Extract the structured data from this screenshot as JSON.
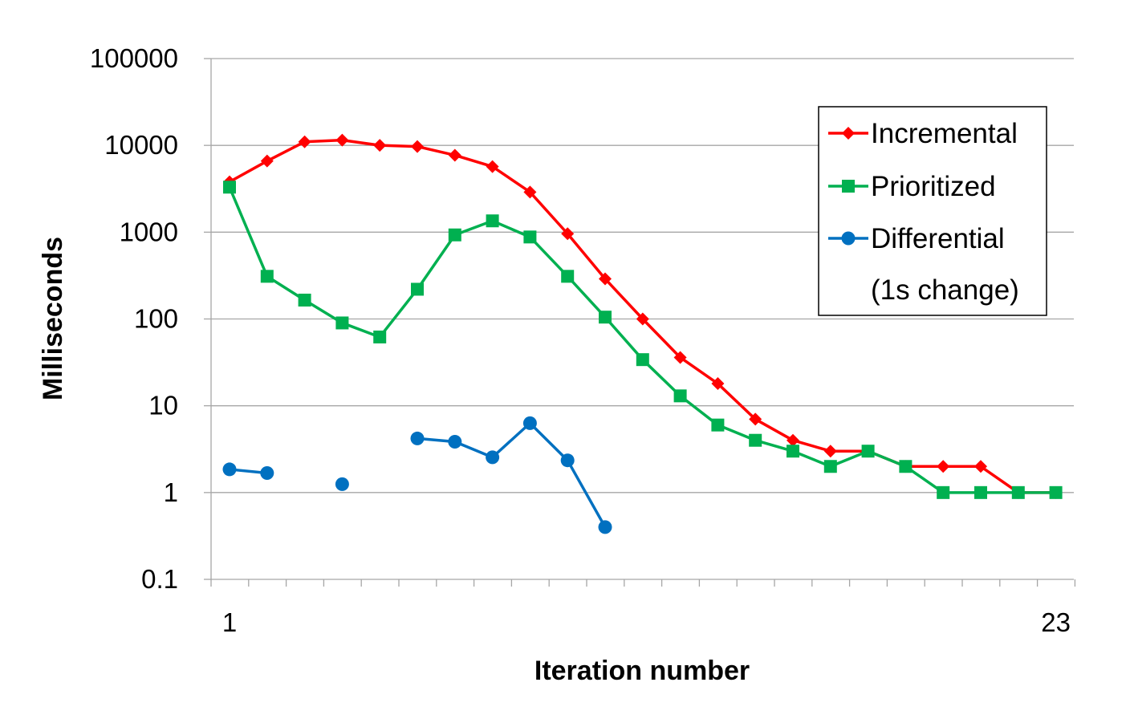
{
  "chart_data": {
    "type": "line",
    "title": "",
    "xlabel": "Iteration number",
    "ylabel": "Milliseconds",
    "y_scale": "log",
    "ylim": [
      0.1,
      100000
    ],
    "xlim": [
      1,
      23
    ],
    "y_tick_labels": [
      "0.1",
      "1",
      "10",
      "100",
      "1000",
      "10000",
      "100000"
    ],
    "y_tick_values": [
      0.1,
      1,
      10,
      100,
      1000,
      10000,
      100000
    ],
    "x_tick_labels": [
      {
        "value": 1,
        "label": "1"
      },
      {
        "value": 23,
        "label": "23"
      }
    ],
    "grid": "horizontal",
    "legend_position": "top-right",
    "legend_extra_line": "(1s change)",
    "series": [
      {
        "name": "Incremental",
        "color": "#ff0000",
        "marker": "diamond",
        "x": [
          1,
          2,
          3,
          4,
          5,
          6,
          7,
          8,
          9,
          10,
          11,
          12,
          13,
          14,
          15,
          16,
          17,
          18,
          19,
          20,
          21,
          22,
          23
        ],
        "values": [
          3800,
          6600,
          11000,
          11500,
          10000,
          9700,
          7700,
          5700,
          2900,
          960,
          290,
          100,
          36,
          18,
          7,
          4,
          3,
          3,
          2,
          2,
          2,
          1,
          1
        ]
      },
      {
        "name": "Prioritized",
        "color": "#00b050",
        "marker": "square",
        "x": [
          1,
          2,
          3,
          4,
          5,
          6,
          7,
          8,
          9,
          10,
          11,
          12,
          13,
          14,
          15,
          16,
          17,
          18,
          19,
          20,
          21,
          22,
          23
        ],
        "values": [
          3300,
          310,
          165,
          90,
          62,
          220,
          930,
          1350,
          880,
          310,
          105,
          34,
          13,
          6,
          4,
          3,
          2,
          3,
          2,
          1,
          1,
          1,
          1
        ]
      },
      {
        "name": "Differential",
        "color": "#0070c0",
        "marker": "circle",
        "x": [
          1,
          2,
          3,
          4,
          5,
          6,
          7,
          8,
          9,
          10,
          11
        ],
        "values": [
          1.85,
          1.68,
          null,
          1.25,
          null,
          4.2,
          3.85,
          2.55,
          6.3,
          2.35,
          0.4
        ]
      }
    ]
  }
}
